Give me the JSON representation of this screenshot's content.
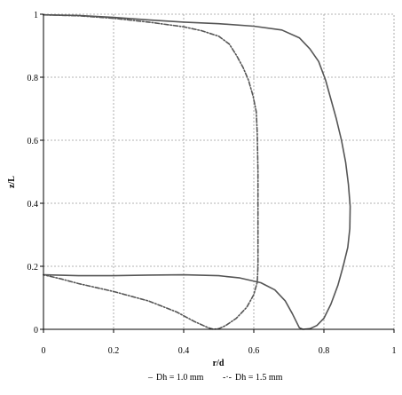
{
  "chart_data": {
    "type": "line",
    "title": "",
    "xlabel": "r/d",
    "ylabel": "z/L",
    "xlim": [
      0,
      1
    ],
    "ylim": [
      0,
      1
    ],
    "xticks": [
      {
        "value": 0,
        "label": "0"
      },
      {
        "value": 0.2,
        "label": "0.2"
      },
      {
        "value": 0.4,
        "label": "0.4"
      },
      {
        "value": 0.6,
        "label": "0.6"
      },
      {
        "value": 0.8,
        "label": "0.8"
      },
      {
        "value": 1,
        "label": "1"
      }
    ],
    "yticks": [
      {
        "value": 0,
        "label": "0"
      },
      {
        "value": 0.2,
        "label": "0.2"
      },
      {
        "value": 0.4,
        "label": "0.4"
      },
      {
        "value": 0.6,
        "label": "0.6"
      },
      {
        "value": 0.8,
        "label": "0.8"
      },
      {
        "value": 1,
        "label": "1"
      }
    ],
    "grid": true,
    "legend_position": "bottom",
    "series": [
      {
        "name": "Dh = 1.0 mm",
        "line_style": "solid",
        "color": "#555555",
        "points": [
          [
            0.0,
            0.998
          ],
          [
            0.1,
            0.996
          ],
          [
            0.2,
            0.99
          ],
          [
            0.3,
            0.982
          ],
          [
            0.4,
            0.975
          ],
          [
            0.5,
            0.97
          ],
          [
            0.6,
            0.962
          ],
          [
            0.68,
            0.95
          ],
          [
            0.73,
            0.925
          ],
          [
            0.76,
            0.89
          ],
          [
            0.785,
            0.85
          ],
          [
            0.805,
            0.79
          ],
          [
            0.82,
            0.73
          ],
          [
            0.835,
            0.67
          ],
          [
            0.85,
            0.6
          ],
          [
            0.862,
            0.53
          ],
          [
            0.87,
            0.46
          ],
          [
            0.875,
            0.39
          ],
          [
            0.874,
            0.32
          ],
          [
            0.868,
            0.26
          ],
          [
            0.855,
            0.2
          ],
          [
            0.84,
            0.14
          ],
          [
            0.82,
            0.08
          ],
          [
            0.8,
            0.035
          ],
          [
            0.78,
            0.012
          ],
          [
            0.76,
            0.002
          ],
          [
            0.74,
            0.0
          ],
          [
            0.73,
            0.005
          ],
          [
            0.71,
            0.05
          ],
          [
            0.69,
            0.09
          ],
          [
            0.66,
            0.125
          ],
          [
            0.62,
            0.148
          ],
          [
            0.56,
            0.163
          ],
          [
            0.5,
            0.17
          ],
          [
            0.4,
            0.173
          ],
          [
            0.3,
            0.172
          ],
          [
            0.2,
            0.17
          ],
          [
            0.1,
            0.17
          ],
          [
            0.0,
            0.173
          ]
        ]
      },
      {
        "name": "Dh = 1.5 mm",
        "line_style": "dash-dot",
        "color": "#555555",
        "points": [
          [
            0.0,
            0.998
          ],
          [
            0.1,
            0.995
          ],
          [
            0.2,
            0.987
          ],
          [
            0.3,
            0.975
          ],
          [
            0.4,
            0.96
          ],
          [
            0.45,
            0.948
          ],
          [
            0.5,
            0.93
          ],
          [
            0.53,
            0.905
          ],
          [
            0.55,
            0.87
          ],
          [
            0.57,
            0.83
          ],
          [
            0.585,
            0.79
          ],
          [
            0.598,
            0.74
          ],
          [
            0.607,
            0.69
          ],
          [
            0.61,
            0.62
          ],
          [
            0.612,
            0.5
          ],
          [
            0.612,
            0.4
          ],
          [
            0.612,
            0.3
          ],
          [
            0.612,
            0.2
          ],
          [
            0.61,
            0.15
          ],
          [
            0.6,
            0.11
          ],
          [
            0.58,
            0.07
          ],
          [
            0.55,
            0.035
          ],
          [
            0.52,
            0.012
          ],
          [
            0.5,
            0.002
          ],
          [
            0.485,
            0.0
          ],
          [
            0.47,
            0.005
          ],
          [
            0.43,
            0.025
          ],
          [
            0.38,
            0.055
          ],
          [
            0.3,
            0.09
          ],
          [
            0.2,
            0.12
          ],
          [
            0.1,
            0.145
          ],
          [
            0.05,
            0.16
          ],
          [
            0.0,
            0.173
          ]
        ]
      }
    ]
  },
  "legend": {
    "entries": [
      {
        "marker": "–",
        "label": "Dh = 1.0 mm"
      },
      {
        "marker": "-·-",
        "label": "Dh = 1.5 mm"
      }
    ]
  }
}
